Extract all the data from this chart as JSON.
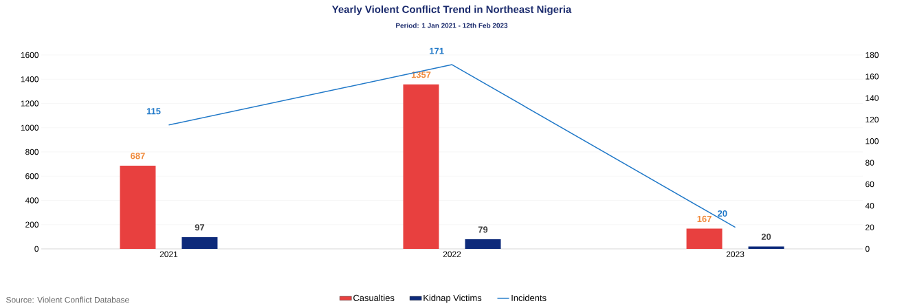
{
  "chart_data": {
    "type": "bar",
    "title": "Yearly Violent Conflict Trend in Northeast Nigeria",
    "subtitle": "Period: 1 Jan 2021 - 12th Feb 2023",
    "categories": [
      "2021",
      "2022",
      "2023"
    ],
    "series": [
      {
        "name": "Casualties",
        "color": "#e8403f",
        "values": [
          687,
          1357,
          167
        ]
      },
      {
        "name": "Kidnap Victims",
        "color": "#0d2a7a",
        "values": [
          97,
          79,
          20
        ]
      },
      {
        "name": "Incidents",
        "type": "line",
        "axis": "y2",
        "color": "#1f78c8",
        "values": [
          115,
          171,
          20
        ]
      }
    ],
    "ylim": [
      0,
      1600
    ],
    "yticks": [
      0,
      200,
      400,
      600,
      800,
      1000,
      1200,
      1400,
      1600
    ],
    "y2lim": [
      0,
      180
    ],
    "y2ticks": [
      0,
      20,
      40,
      60,
      80,
      100,
      120,
      140,
      160,
      180
    ],
    "grid": "y",
    "legend": "bottom",
    "data_labels": true,
    "marker": "none",
    "annotations": [
      "Source: Violent Conflict Database"
    ]
  }
}
